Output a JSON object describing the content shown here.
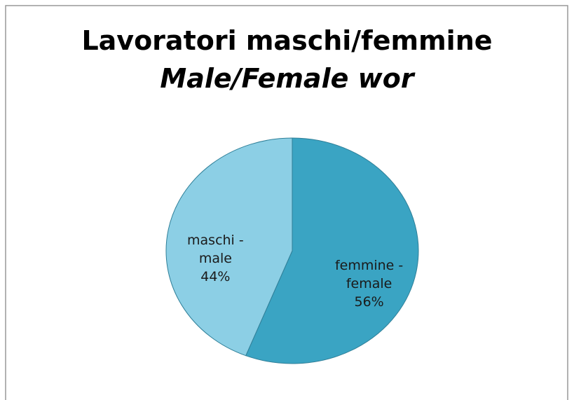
{
  "chart_data": {
    "type": "pie",
    "title": "Lavoratori maschi/femmine",
    "subtitle": "Male/Female wor",
    "categories": [
      "femmine - female",
      "maschi - male"
    ],
    "values": [
      56,
      44
    ],
    "value_labels": [
      "56%",
      "44%"
    ],
    "colors": [
      "#3aa4c3",
      "#8ccfe5"
    ]
  }
}
